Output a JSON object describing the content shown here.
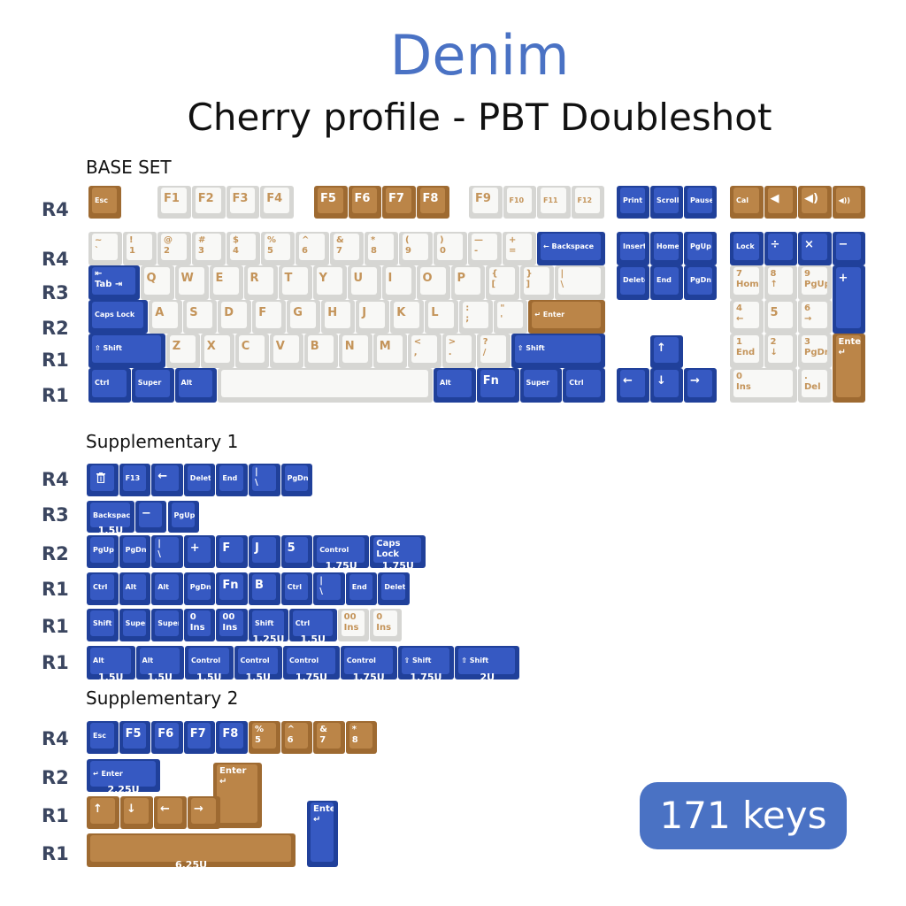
{
  "header": {
    "title": "Denim",
    "subtitle": "Cherry profile - PBT Doubleshot"
  },
  "sections": {
    "base": "BASE SET",
    "supp1": "Supplementary 1",
    "supp2": "Supplementary 2"
  },
  "badge": "171 keys",
  "colors": {
    "blue": "#3659c2",
    "tan": "#bb8548",
    "white": "#f8f8f6",
    "title": "#4a72c4"
  },
  "row_labels": {
    "base": [
      "R4",
      "R4",
      "R3",
      "R2",
      "R1",
      "R1"
    ],
    "supp1": [
      "R4",
      "R3",
      "R2",
      "R1",
      "R1",
      "R1"
    ],
    "supp2": [
      "R4",
      "R2",
      "R1",
      "R1"
    ]
  },
  "groups": {
    "function_row": [
      {
        "t": "Esc",
        "c": "t"
      },
      {
        "t": "F1",
        "c": "w"
      },
      {
        "t": "F2",
        "c": "w"
      },
      {
        "t": "F3",
        "c": "w"
      },
      {
        "t": "F4",
        "c": "w"
      },
      {
        "t": "F5",
        "c": "t"
      },
      {
        "t": "F6",
        "c": "t"
      },
      {
        "t": "F7",
        "c": "t"
      },
      {
        "t": "F8",
        "c": "t"
      },
      {
        "t": "F9",
        "c": "w"
      },
      {
        "t": "F10",
        "c": "w"
      },
      {
        "t": "F11",
        "c": "w"
      },
      {
        "t": "F12",
        "c": "w"
      },
      {
        "t": "Print",
        "c": "b"
      },
      {
        "t": "Scroll",
        "c": "b"
      },
      {
        "t": "Pause",
        "c": "b"
      },
      {
        "t": "Cal",
        "c": "t"
      },
      {
        "t": "◀",
        "c": "t"
      },
      {
        "t": "◀)",
        "c": "t"
      },
      {
        "t": "◀))",
        "c": "t"
      }
    ],
    "main": [
      {
        "t": "~",
        "b": "`",
        "c": "w"
      },
      {
        "t": "!",
        "b": "1",
        "c": "w"
      },
      {
        "t": "@",
        "b": "2",
        "c": "w"
      },
      {
        "t": "#",
        "b": "3",
        "c": "w"
      },
      {
        "t": "$",
        "b": "4",
        "c": "w"
      },
      {
        "t": "%",
        "b": "5",
        "c": "w"
      },
      {
        "t": "^",
        "b": "6",
        "c": "w"
      },
      {
        "t": "&",
        "b": "7",
        "c": "w"
      },
      {
        "t": "*",
        "b": "8",
        "c": "w"
      },
      {
        "t": "(",
        "b": "9",
        "c": "w"
      },
      {
        "t": ")",
        "b": "0",
        "c": "w"
      },
      {
        "t": "—",
        "b": "-",
        "c": "w"
      },
      {
        "t": "+",
        "b": "=",
        "c": "w"
      },
      {
        "t": "← Backspace",
        "c": "b"
      },
      {
        "t": "⇤",
        "b": "Tab ⇥",
        "c": "b"
      },
      {
        "t": "Q",
        "c": "w"
      },
      {
        "t": "W",
        "c": "w"
      },
      {
        "t": "E",
        "c": "w"
      },
      {
        "t": "R",
        "c": "w"
      },
      {
        "t": "T",
        "c": "w"
      },
      {
        "t": "Y",
        "c": "w"
      },
      {
        "t": "U",
        "c": "w"
      },
      {
        "t": "I",
        "c": "w"
      },
      {
        "t": "O",
        "c": "w"
      },
      {
        "t": "P",
        "c": "w"
      },
      {
        "t": "{",
        "b": "[",
        "c": "w"
      },
      {
        "t": "}",
        "b": "]",
        "c": "w"
      },
      {
        "t": "|",
        "b": "\\",
        "c": "w"
      },
      {
        "t": "Caps Lock",
        "c": "b"
      },
      {
        "t": "A",
        "c": "w"
      },
      {
        "t": "S",
        "c": "w"
      },
      {
        "t": "D",
        "c": "w"
      },
      {
        "t": "F",
        "c": "w"
      },
      {
        "t": "G",
        "c": "w"
      },
      {
        "t": "H",
        "c": "w"
      },
      {
        "t": "J",
        "c": "w"
      },
      {
        "t": "K",
        "c": "w"
      },
      {
        "t": "L",
        "c": "w"
      },
      {
        "t": ":",
        "b": ";",
        "c": "w"
      },
      {
        "t": "\"",
        "b": "'",
        "c": "w"
      },
      {
        "t": "↵ Enter",
        "c": "t"
      },
      {
        "t": "⇧ Shift",
        "c": "b"
      },
      {
        "t": "Z",
        "c": "w"
      },
      {
        "t": "X",
        "c": "w"
      },
      {
        "t": "C",
        "c": "w"
      },
      {
        "t": "V",
        "c": "w"
      },
      {
        "t": "B",
        "c": "w"
      },
      {
        "t": "N",
        "c": "w"
      },
      {
        "t": "M",
        "c": "w"
      },
      {
        "t": "<",
        "b": ",",
        "c": "w"
      },
      {
        "t": ">",
        "b": ".",
        "c": "w"
      },
      {
        "t": "?",
        "b": "/",
        "c": "w"
      },
      {
        "t": "⇧ Shift",
        "c": "b"
      },
      {
        "t": "Ctrl",
        "c": "b"
      },
      {
        "t": "Super",
        "c": "b"
      },
      {
        "t": "Alt",
        "c": "b"
      },
      {
        "t": "",
        "c": "w"
      },
      {
        "t": "Alt",
        "c": "b"
      },
      {
        "t": "Fn",
        "c": "b"
      },
      {
        "t": "Super",
        "c": "b"
      },
      {
        "t": "Ctrl",
        "c": "b"
      }
    ],
    "navigation": [
      {
        "t": "Insert",
        "c": "b"
      },
      {
        "t": "Home",
        "c": "b"
      },
      {
        "t": "PgUp",
        "c": "b"
      },
      {
        "t": "Delete",
        "c": "b"
      },
      {
        "t": "End",
        "c": "b"
      },
      {
        "t": "PgDn",
        "c": "b"
      },
      {
        "t": "↑",
        "c": "b"
      },
      {
        "t": "←",
        "c": "b"
      },
      {
        "t": "↓",
        "c": "b"
      },
      {
        "t": "→",
        "c": "b"
      }
    ],
    "numpad": [
      {
        "t": "Lock",
        "c": "b"
      },
      {
        "t": "÷",
        "c": "b"
      },
      {
        "t": "×",
        "c": "b"
      },
      {
        "t": "−",
        "c": "b"
      },
      {
        "t": "7",
        "b": "Home",
        "c": "w"
      },
      {
        "t": "8",
        "b": "↑",
        "c": "w"
      },
      {
        "t": "9",
        "b": "PgUp",
        "c": "w"
      },
      {
        "t": "+",
        "c": "b"
      },
      {
        "t": "4",
        "b": "←",
        "c": "w"
      },
      {
        "t": "5",
        "c": "w"
      },
      {
        "t": "6",
        "b": "→",
        "c": "w"
      },
      {
        "t": "1",
        "b": "End",
        "c": "w"
      },
      {
        "t": "2",
        "b": "↓",
        "c": "w"
      },
      {
        "t": "3",
        "b": "PgDn",
        "c": "w"
      },
      {
        "t": "Enter",
        "b": "↵",
        "c": "t"
      },
      {
        "t": "0",
        "b": "Ins",
        "c": "w"
      },
      {
        "t": ".",
        "b": "Del",
        "c": "w"
      }
    ],
    "supp1": [
      {
        "t": "",
        "icon": "trash",
        "c": "b"
      },
      {
        "t": "F13",
        "c": "b"
      },
      {
        "t": "←",
        "c": "b"
      },
      {
        "t": "Delete",
        "c": "b"
      },
      {
        "t": "End",
        "c": "b"
      },
      {
        "t": "|",
        "b": "\\",
        "c": "b"
      },
      {
        "t": "PgDn",
        "c": "b"
      },
      {
        "t": "Backspace",
        "s": "1.5U",
        "c": "b"
      },
      {
        "t": "−",
        "c": "b"
      },
      {
        "t": "PgUp",
        "c": "b"
      },
      {
        "t": "PgUp",
        "c": "b"
      },
      {
        "t": "PgDn",
        "c": "b"
      },
      {
        "t": "|",
        "b": "\\",
        "c": "b"
      },
      {
        "t": "+",
        "c": "b"
      },
      {
        "t": "F",
        "c": "b"
      },
      {
        "t": "J",
        "c": "b"
      },
      {
        "t": "5",
        "c": "b"
      },
      {
        "t": "Control",
        "s": "1.75U",
        "c": "b"
      },
      {
        "t": "Caps",
        "b": "Lock",
        "s": "1.75U",
        "c": "b"
      },
      {
        "t": "Ctrl",
        "c": "b"
      },
      {
        "t": "Alt",
        "c": "b"
      },
      {
        "t": "Alt",
        "c": "b"
      },
      {
        "t": "PgDn",
        "c": "b"
      },
      {
        "t": "Fn",
        "c": "b"
      },
      {
        "t": "B",
        "c": "b"
      },
      {
        "t": "Ctrl",
        "c": "b"
      },
      {
        "t": "|",
        "b": "\\",
        "c": "b"
      },
      {
        "t": "End",
        "c": "b"
      },
      {
        "t": "Delete",
        "c": "b"
      },
      {
        "t": "Shift",
        "c": "b"
      },
      {
        "t": "Super",
        "c": "b"
      },
      {
        "t": "Super",
        "c": "b"
      },
      {
        "t": "0",
        "b": "Ins",
        "c": "b"
      },
      {
        "t": "00",
        "b": "Ins",
        "c": "b"
      },
      {
        "t": "Shift",
        "s": "1.25U",
        "c": "b"
      },
      {
        "t": "Ctrl",
        "s": "1.5U",
        "c": "b"
      },
      {
        "t": "00",
        "b": "Ins",
        "c": "w"
      },
      {
        "t": "0",
        "b": "Ins",
        "c": "w"
      },
      {
        "t": "Alt",
        "s": "1.5U",
        "c": "b"
      },
      {
        "t": "Alt",
        "s": "1.5U",
        "c": "b"
      },
      {
        "t": "Control",
        "s": "1.5U",
        "c": "b"
      },
      {
        "t": "Control",
        "s": "1.5U",
        "c": "b"
      },
      {
        "t": "Control",
        "s": "1.75U",
        "c": "b"
      },
      {
        "t": "Control",
        "s": "1.75U",
        "c": "b"
      },
      {
        "t": "⇧ Shift",
        "s": "1.75U",
        "c": "b"
      },
      {
        "t": "⇧ Shift",
        "s": "2U",
        "c": "b"
      }
    ],
    "supp2": [
      {
        "t": "Esc",
        "c": "b"
      },
      {
        "t": "F5",
        "c": "b"
      },
      {
        "t": "F6",
        "c": "b"
      },
      {
        "t": "F7",
        "c": "b"
      },
      {
        "t": "F8",
        "c": "b"
      },
      {
        "t": "%",
        "b": "5",
        "c": "t"
      },
      {
        "t": "^",
        "b": "6",
        "c": "t"
      },
      {
        "t": "&",
        "b": "7",
        "c": "t"
      },
      {
        "t": "*",
        "b": "8",
        "c": "t"
      },
      {
        "t": "↵ Enter",
        "s": "2.25U",
        "c": "b"
      },
      {
        "t": "Enter",
        "b": "↵",
        "c": "t"
      },
      {
        "t": "↑",
        "c": "t"
      },
      {
        "t": "↓",
        "c": "t"
      },
      {
        "t": "←",
        "c": "t"
      },
      {
        "t": "→",
        "c": "t"
      },
      {
        "t": "",
        "s": "6.25U",
        "c": "t"
      },
      {
        "t": "Enter",
        "b": "↵",
        "c": "b"
      }
    ]
  }
}
